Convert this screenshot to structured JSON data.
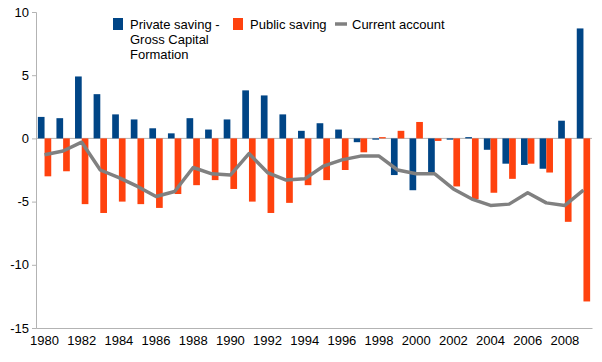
{
  "chart_data": {
    "type": "bar",
    "categories": [
      "1980",
      null,
      "1982",
      null,
      "1984",
      null,
      "1986",
      null,
      "1988",
      null,
      "1990",
      null,
      "1992",
      null,
      "1994",
      null,
      "1996",
      null,
      "1998",
      null,
      "2000",
      null,
      "2002",
      null,
      "2004",
      null,
      "2006",
      null,
      "2008",
      null
    ],
    "series": [
      {
        "name": "Private saving - Gross Capital Formation",
        "color": "#004586",
        "type": "bar",
        "values": [
          1.7,
          1.6,
          4.9,
          3.5,
          1.9,
          1.5,
          0.8,
          0.4,
          1.6,
          0.7,
          1.5,
          3.8,
          3.4,
          1.9,
          0.6,
          1.2,
          0.7,
          -0.3,
          -0.1,
          -2.9,
          -4.1,
          -2.7,
          -0.1,
          0.1,
          -0.9,
          -2.0,
          -2.1,
          -2.4,
          1.4,
          8.7
        ]
      },
      {
        "name": "Public saving",
        "color": "#ff420e",
        "type": "bar",
        "values": [
          -3.0,
          -2.6,
          -5.2,
          -5.9,
          -5.0,
          -5.2,
          -5.5,
          -4.4,
          -3.7,
          -3.3,
          -4.0,
          -5.0,
          -5.9,
          -5.1,
          -3.7,
          -3.3,
          -2.5,
          -1.1,
          0.1,
          0.6,
          1.3,
          -0.2,
          -3.8,
          -4.8,
          -4.3,
          -3.2,
          -2.0,
          -2.7,
          -6.6,
          -12.9
        ]
      },
      {
        "name": "Current account",
        "color": "#808080",
        "type": "line",
        "values": [
          -1.3,
          -1.0,
          -0.3,
          -2.5,
          -3.1,
          -3.8,
          -4.6,
          -4.2,
          -2.3,
          -2.8,
          -2.9,
          -1.2,
          -2.7,
          -3.3,
          -3.2,
          -2.2,
          -1.7,
          -1.4,
          -1.4,
          -2.5,
          -2.8,
          -2.8,
          -4.0,
          -4.8,
          -5.3,
          -5.2,
          -4.3,
          -5.1,
          -5.3,
          -4.1
        ]
      }
    ],
    "ylim": [
      -15,
      10
    ],
    "yticks": [
      -15,
      -10,
      -5,
      0,
      5,
      10
    ],
    "grid": false,
    "legend": "top"
  }
}
